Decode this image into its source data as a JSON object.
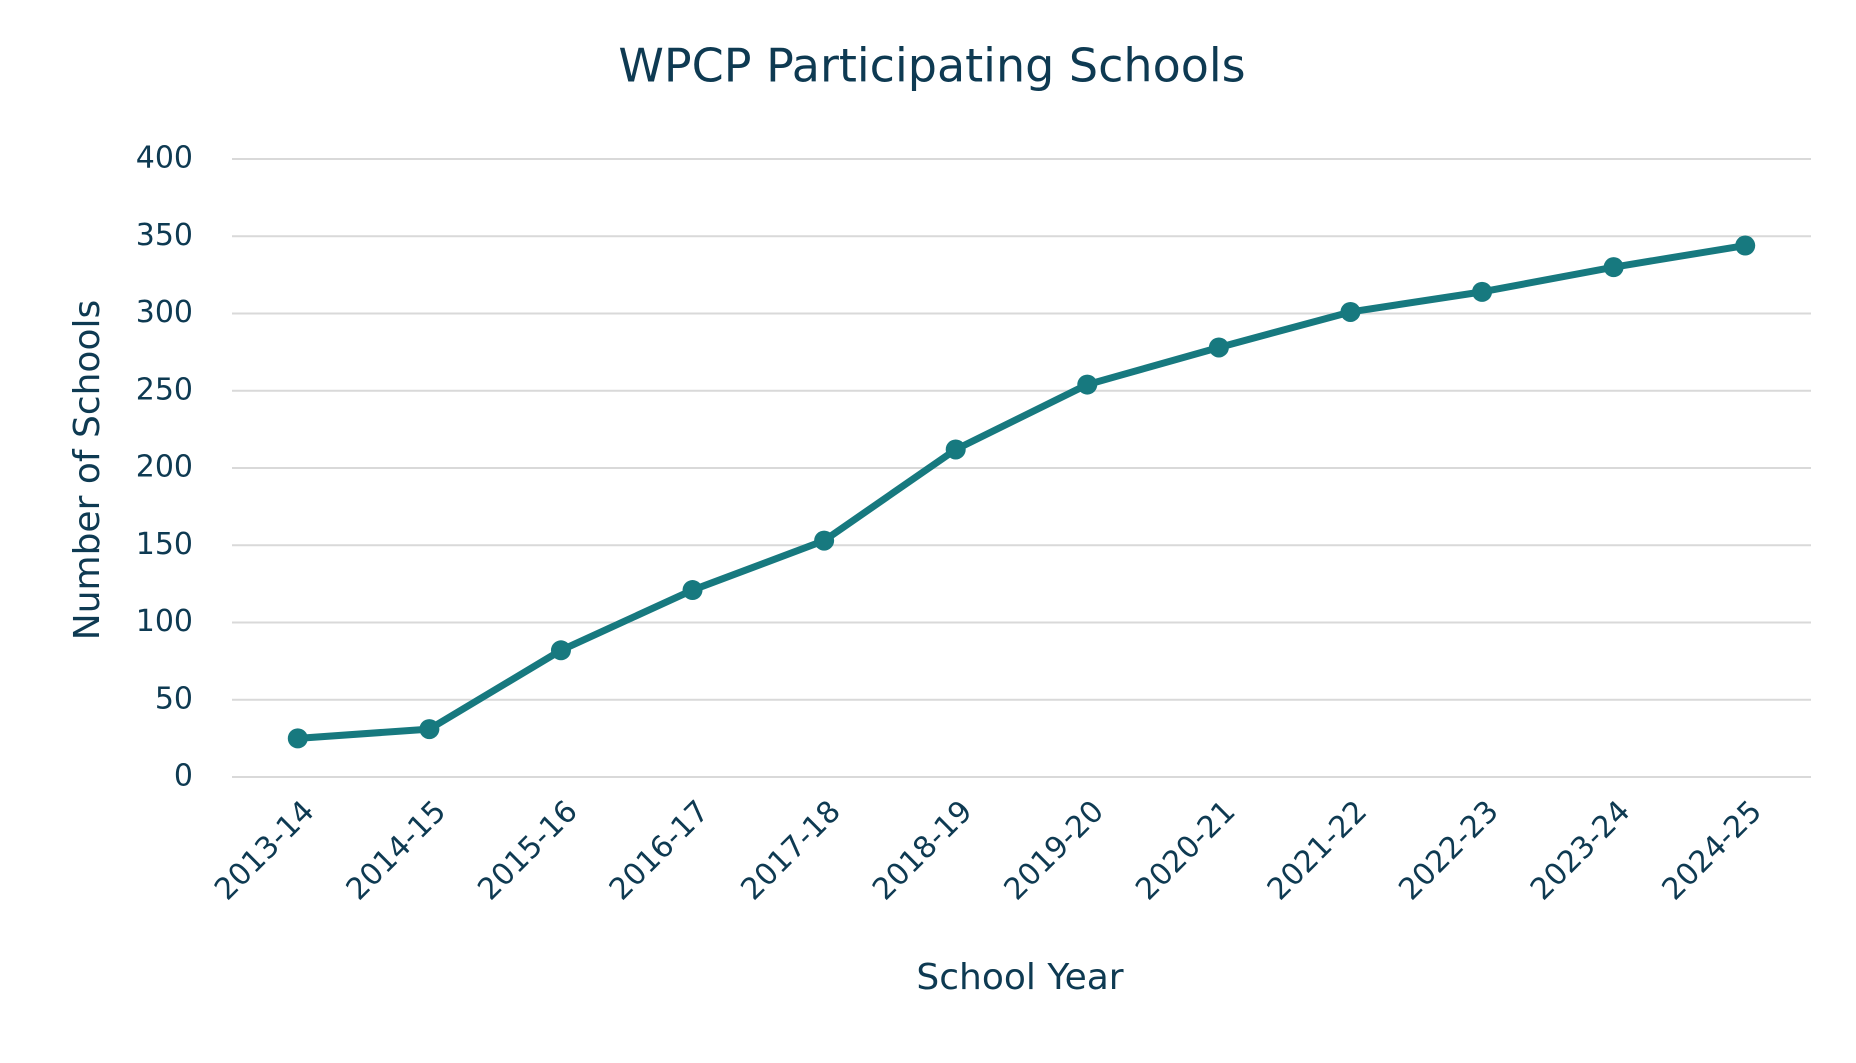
{
  "chart_data": {
    "type": "line",
    "title": "WPCP Participating Schools",
    "x_label": "School Year",
    "y_label": "Number of Schools",
    "categories": [
      "2013-14",
      "2014-15",
      "2015-16",
      "2016-17",
      "2017-18",
      "2018-19",
      "2019-20",
      "2020-21",
      "2021-22",
      "2022-23",
      "2023-24",
      "2024-25"
    ],
    "values": [
      25,
      31,
      82,
      121,
      153,
      212,
      254,
      278,
      301,
      314,
      330,
      344
    ],
    "color": "#17797f",
    "ylim": [
      0,
      400
    ],
    "yticks": [
      0,
      50,
      100,
      150,
      200,
      250,
      300,
      350,
      400
    ],
    "grid": true
  }
}
